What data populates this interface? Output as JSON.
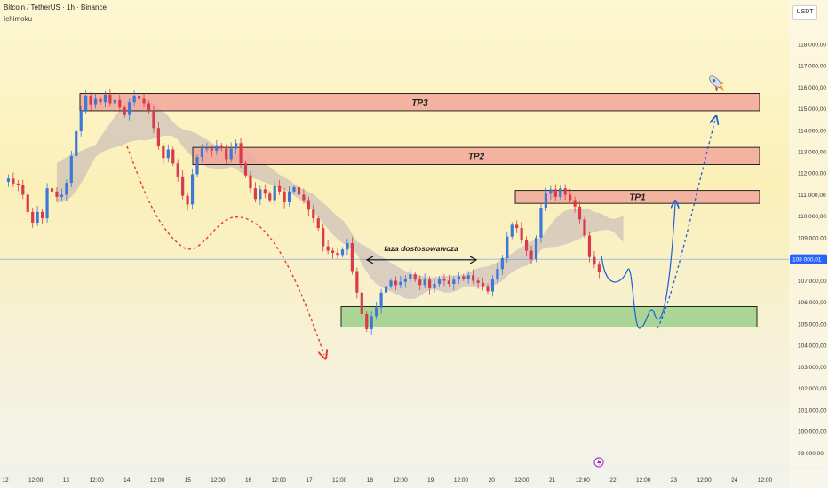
{
  "header": {
    "symbol": "Bitcoin / TetherUS · 1h · Binance",
    "indicator": "Ichimoku"
  },
  "currency_unit": "USDT",
  "current_price_label": "108 000,01",
  "colors": {
    "up": "#3c78d8",
    "down": "#d93b4c",
    "zone_target": "#f2a79b",
    "zone_support": "#9cd08a",
    "cloud": "#bfb1b8",
    "price_line": "#2962ff",
    "forecast": "#1f5fd6",
    "decline": "#e23b3b"
  },
  "chart_data": {
    "type": "candlestick",
    "y_ticks": [
      "118 000,00",
      "117 000,00",
      "116 000,00",
      "115 000,00",
      "114 000,00",
      "113 000,00",
      "112 000,00",
      "111 000,00",
      "110 000,00",
      "109 000,00",
      "108 000,00",
      "107 000,00",
      "106 000,00",
      "105 000,00",
      "104 000,00",
      "103 000,00",
      "102 000,00",
      "101 000,00",
      "100 000,00",
      "99 000,00"
    ],
    "ylim": [
      98600,
      118900
    ],
    "x_ticks": [
      "12",
      "12:00",
      "13",
      "12:00",
      "14",
      "12:00",
      "15",
      "12:00",
      "16",
      "12:00",
      "17",
      "12:00",
      "18",
      "12:00",
      "19",
      "12:00",
      "20",
      "12:00",
      "21",
      "12:00",
      "22",
      "12:00",
      "23",
      "12:00",
      "24",
      "12:00"
    ],
    "current_price": 108000.01,
    "zones": [
      {
        "label": "TP3",
        "from": 114900,
        "to": 115700,
        "kind": "target"
      },
      {
        "label": "TP2",
        "from": 112400,
        "to": 113200,
        "kind": "target"
      },
      {
        "label": "TP1",
        "from": 110600,
        "to": 111200,
        "kind": "target"
      },
      {
        "label": "",
        "from": 104850,
        "to": 105800,
        "kind": "support"
      }
    ],
    "annotations": [
      {
        "text": "faza dostosowawcza",
        "kind": "range-arrow",
        "y": 108300
      }
    ],
    "price_path": [
      111600,
      111750,
      111520,
      111450,
      111000,
      110200,
      109700,
      110200,
      109900,
      111300,
      111150,
      110900,
      111000,
      111550,
      112800,
      113950,
      114900,
      115600,
      115200,
      115450,
      115300,
      115650,
      115250,
      115400,
      115050,
      114700,
      115300,
      115600,
      115450,
      115250,
      114900,
      114100,
      113250,
      112700,
      113100,
      112450,
      111850,
      110950,
      110550,
      111950,
      112750,
      113150,
      113150,
      113050,
      113300,
      113150,
      112650,
      113150,
      113400,
      112450,
      111900,
      111300,
      110800,
      111250,
      111050,
      110750,
      111400,
      111150,
      110650,
      111150,
      111350,
      111000,
      110750,
      110300,
      109900,
      109450,
      108600,
      108400,
      108300,
      108200,
      108450,
      108750,
      107450,
      106450,
      105450,
      104750,
      105350,
      105750,
      106450,
      106750,
      107000,
      106800,
      106950,
      107100,
      107300,
      107050,
      106800,
      107050,
      106650,
      106850,
      107100,
      107000,
      106850,
      107050,
      107200,
      107100,
      107250,
      107000,
      106900,
      106750,
      106500,
      107050,
      107550,
      108050,
      109050,
      109600,
      109450,
      108900,
      108400,
      108000,
      109000,
      110400,
      111050,
      111250,
      110900,
      111300,
      111000,
      110750,
      110450,
      109850,
      109100,
      108100,
      107750,
      107400
    ]
  }
}
